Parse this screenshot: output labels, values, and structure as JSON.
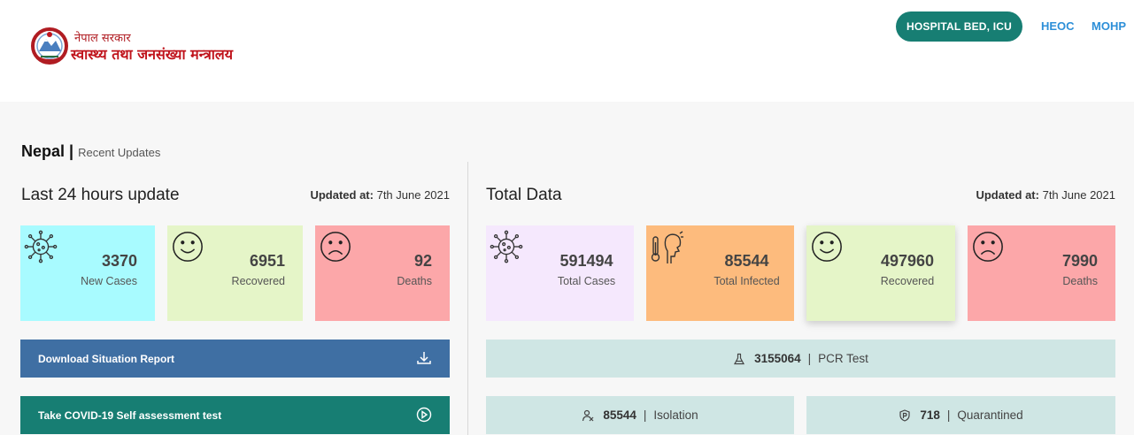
{
  "header": {
    "logo_line1": "नेपाल सरकार",
    "logo_line2": "स्वास्थ्य तथा जनसंख्या मन्त्रालय",
    "nav": {
      "hospital": "HOSPITAL BED, ICU",
      "heoc": "HEOC",
      "mohp": "MOHP"
    }
  },
  "page": {
    "title": "Nepal",
    "separator": "|",
    "subtitle": "Recent Updates"
  },
  "last24": {
    "title": "Last 24 hours update",
    "updated_label": "Updated at:",
    "updated_value": "7th June 2021",
    "cards": [
      {
        "value": "3370",
        "label": "New Cases",
        "color": "#a8fbff",
        "icon": "virus-icon"
      },
      {
        "value": "6951",
        "label": "Recovered",
        "color": "#e5f5c8",
        "icon": "smile-icon"
      },
      {
        "value": "92",
        "label": "Deaths",
        "color": "#fca7a9",
        "icon": "sad-icon"
      }
    ],
    "download_label": "Download Situation Report",
    "selftest_label": "Take COVID-19 Self assessment test"
  },
  "total": {
    "title": "Total Data",
    "updated_label": "Updated at:",
    "updated_value": "7th June 2021",
    "cards": [
      {
        "value": "591494",
        "label": "Total Cases",
        "color": "#f5e8fd",
        "icon": "virus-icon"
      },
      {
        "value": "85544",
        "label": "Total Infected",
        "color": "#fdbb7d",
        "icon": "thermometer-person-icon"
      },
      {
        "value": "497960",
        "label": "Recovered",
        "color": "#e5f5c8",
        "icon": "smile-icon"
      },
      {
        "value": "7990",
        "label": "Deaths",
        "color": "#fca7a9",
        "icon": "sad-icon"
      }
    ],
    "pcr": {
      "value": "3155064",
      "sep": "|",
      "label": "PCR Test"
    },
    "isolation": {
      "value": "85544",
      "sep": "|",
      "label": "Isolation"
    },
    "quarantined": {
      "value": "718",
      "sep": "|",
      "label": "Quarantined"
    }
  },
  "colors": {
    "accent_teal": "#177e73",
    "download_blue": "#3f6fa3",
    "nav_link": "#2d8fd8"
  }
}
